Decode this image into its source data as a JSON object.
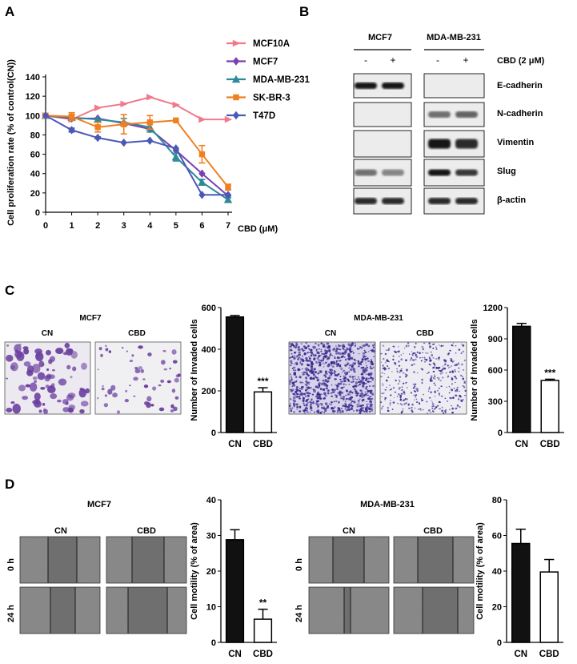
{
  "panels": {
    "A": {
      "letter": "A"
    },
    "B": {
      "letter": "B"
    },
    "C": {
      "letter": "C"
    },
    "D": {
      "letter": "D"
    }
  },
  "colors": {
    "MCF10A": "#f07a8a",
    "MCF7": "#7a3fb0",
    "MDA-MB-231": "#2f8a98",
    "SK-BR-3": "#f07f20",
    "T47D": "#4a59b8",
    "bar_cn": "#111111",
    "bar_cbd": "#ffffff",
    "crystal_violet": "#6b3fa0",
    "crystal_violet_dense": "#3a2b8f"
  },
  "western": {
    "group_labels": [
      "MCF7",
      "MDA-MB-231"
    ],
    "treatment_label": "CBD (2 μM)",
    "lane_signs": [
      "-",
      "+",
      "-",
      "+"
    ],
    "bands": [
      "E-cadherin",
      "N-cadherin",
      "Vimentin",
      "Slug",
      "β-actin"
    ]
  },
  "panel_c": {
    "left_title": "MCF7",
    "right_title": "MDA-MB-231",
    "image_labels": [
      "CN",
      "CBD"
    ]
  },
  "panel_d": {
    "left_title": "MCF7",
    "right_title": "MDA-MB-231",
    "image_labels": [
      "CN",
      "CBD"
    ],
    "row_labels": [
      "0 h",
      "24 h"
    ]
  },
  "chart_data": [
    {
      "id": "A",
      "type": "line",
      "title": "",
      "xlabel": "CBD (μM)",
      "ylabel": "Cell proliferation rate (% of control(CN))",
      "x": [
        0,
        1,
        2,
        3,
        4,
        5,
        6,
        7
      ],
      "xlim": [
        0,
        7
      ],
      "ylim": [
        0,
        140
      ],
      "yticks": [
        0,
        20,
        40,
        60,
        80,
        100,
        120,
        140
      ],
      "legend_position": "top-right",
      "series": [
        {
          "name": "MCF10A",
          "values": [
            100,
            96,
            108,
            112,
            119,
            111,
            96,
            96
          ],
          "errors": [
            0,
            0,
            0,
            0,
            0,
            0,
            0,
            0
          ]
        },
        {
          "name": "MCF7",
          "values": [
            100,
            97,
            97,
            92,
            86,
            64,
            40,
            17
          ],
          "errors": [
            0,
            0,
            0,
            0,
            0,
            0,
            0,
            0
          ]
        },
        {
          "name": "MDA-MB-231",
          "values": [
            100,
            98,
            96,
            93,
            88,
            57,
            31,
            13
          ],
          "errors": [
            0,
            3,
            0,
            4,
            5,
            4,
            3,
            2
          ]
        },
        {
          "name": "SK-BR-3",
          "values": [
            100,
            99,
            88,
            91,
            93,
            95,
            60,
            26
          ],
          "errors": [
            0,
            4,
            5,
            10,
            7,
            0,
            9,
            3
          ]
        },
        {
          "name": "T47D",
          "values": [
            100,
            85,
            77,
            72,
            74,
            66,
            18,
            18
          ],
          "errors": [
            0,
            2,
            1,
            0,
            0,
            0,
            0,
            0
          ]
        }
      ]
    },
    {
      "id": "C-MCF7",
      "type": "bar",
      "ylabel": "Number of Invaded cells",
      "categories": [
        "CN",
        "CBD"
      ],
      "values": [
        555,
        195
      ],
      "errors": [
        7,
        20
      ],
      "ylim": [
        0,
        600
      ],
      "yticks": [
        0,
        200,
        400,
        600
      ],
      "annotations": [
        "",
        "***"
      ]
    },
    {
      "id": "C-MDA-MB-231",
      "type": "bar",
      "ylabel": "Number of Invaded cells",
      "categories": [
        "CN",
        "CBD"
      ],
      "values": [
        1020,
        500
      ],
      "errors": [
        28,
        12
      ],
      "ylim": [
        0,
        1200
      ],
      "yticks": [
        0,
        300,
        600,
        900,
        1200
      ],
      "annotations": [
        "",
        "***"
      ]
    },
    {
      "id": "D-MCF7",
      "type": "bar",
      "ylabel": "Cell motility (% of area)",
      "categories": [
        "CN",
        "CBD"
      ],
      "values": [
        28.8,
        6.5
      ],
      "errors": [
        2.8,
        2.8
      ],
      "ylim": [
        0,
        40
      ],
      "yticks": [
        0,
        10,
        20,
        30,
        40
      ],
      "annotations": [
        "",
        "**"
      ]
    },
    {
      "id": "D-MDA-MB-231",
      "type": "bar",
      "ylabel": "Cell motility (% of area)",
      "categories": [
        "CN",
        "CBD"
      ],
      "values": [
        55.5,
        39.5
      ],
      "errors": [
        8,
        7
      ],
      "ylim": [
        0,
        80
      ],
      "yticks": [
        0,
        20,
        40,
        60,
        80
      ],
      "annotations": [
        "",
        ""
      ]
    }
  ]
}
